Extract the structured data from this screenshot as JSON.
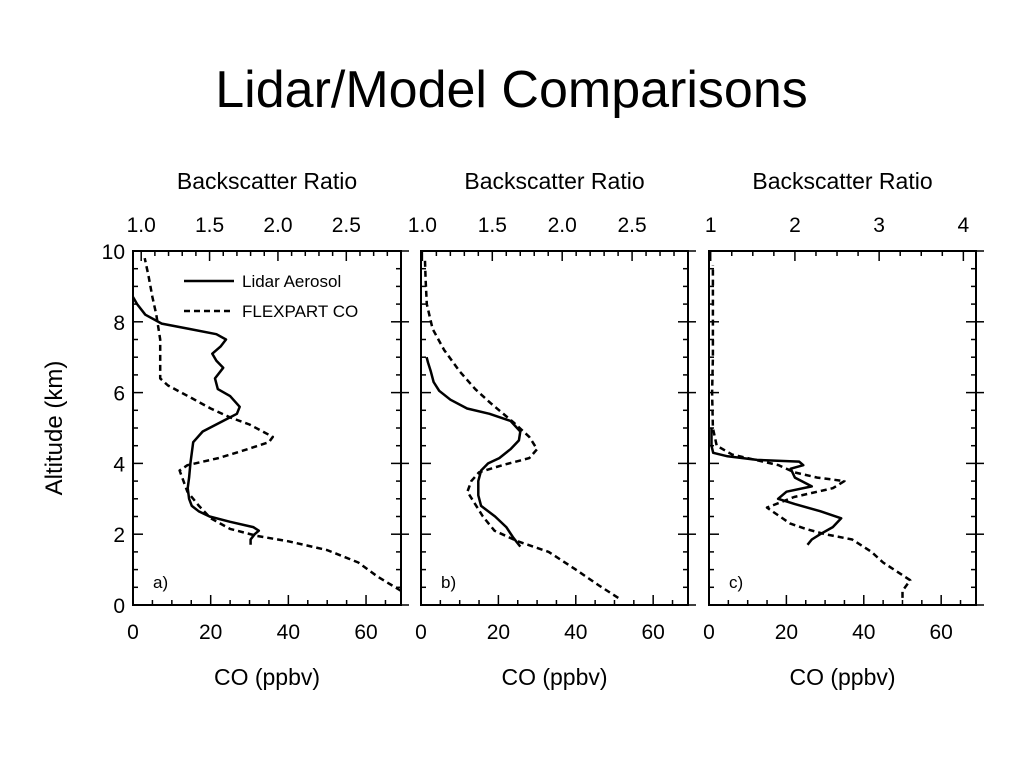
{
  "slide": {
    "title": "Lidar/Model Comparisons"
  },
  "figure": {
    "ylabel": "Altitude (km)",
    "legend": {
      "items": [
        {
          "label": "Lidar Aerosol",
          "style": "solid"
        },
        {
          "label": "FLEXPART CO",
          "style": "dashed"
        }
      ],
      "placement": "top-right of panel a"
    }
  },
  "chart_data": [
    {
      "type": "line",
      "panel_label": "a)",
      "xlabel_bottom": "CO (ppbv)",
      "xlabel_top": "Backscatter Ratio",
      "ylabel": "Altitude (km)",
      "bottom_ticks": [
        "0",
        "20",
        "40",
        "60"
      ],
      "top_ticks": [
        "1.0",
        "1.5",
        "2.0",
        "2.5"
      ],
      "y_ticks": [
        "0",
        "2",
        "4",
        "6",
        "8",
        "10"
      ],
      "co_range": [
        0,
        69
      ],
      "backscatter_range": [
        0.94,
        2.9
      ],
      "ylim": [
        0,
        10
      ],
      "series": [
        {
          "name": "Lidar Aerosol",
          "axis": "Backscatter Ratio",
          "style": "solid",
          "points": [
            [
              1.8,
              1.7
            ],
            [
              1.8,
              1.85
            ],
            [
              1.83,
              2.0
            ],
            [
              1.86,
              2.1
            ],
            [
              1.82,
              2.2
            ],
            [
              1.65,
              2.35
            ],
            [
              1.5,
              2.5
            ],
            [
              1.42,
              2.65
            ],
            [
              1.37,
              2.8
            ],
            [
              1.35,
              3.0
            ],
            [
              1.34,
              3.3
            ],
            [
              1.35,
              3.6
            ],
            [
              1.36,
              4.0
            ],
            [
              1.37,
              4.3
            ],
            [
              1.38,
              4.6
            ],
            [
              1.45,
              4.9
            ],
            [
              1.6,
              5.2
            ],
            [
              1.7,
              5.4
            ],
            [
              1.72,
              5.6
            ],
            [
              1.65,
              5.9
            ],
            [
              1.56,
              6.1
            ],
            [
              1.54,
              6.4
            ],
            [
              1.6,
              6.7
            ],
            [
              1.55,
              6.9
            ],
            [
              1.52,
              7.1
            ],
            [
              1.58,
              7.3
            ],
            [
              1.62,
              7.5
            ],
            [
              1.55,
              7.65
            ],
            [
              1.35,
              7.8
            ],
            [
              1.15,
              7.95
            ],
            [
              1.03,
              8.2
            ],
            [
              0.97,
              8.5
            ],
            [
              0.94,
              8.7
            ]
          ]
        },
        {
          "name": "FLEXPART CO",
          "axis": "CO (ppbv)",
          "style": "dashed",
          "points": [
            [
              69,
              0.4
            ],
            [
              63,
              0.8
            ],
            [
              58,
              1.2
            ],
            [
              50,
              1.55
            ],
            [
              40,
              1.8
            ],
            [
              32,
              1.95
            ],
            [
              25,
              2.15
            ],
            [
              20,
              2.45
            ],
            [
              17,
              2.8
            ],
            [
              14,
              3.2
            ],
            [
              13,
              3.5
            ],
            [
              12,
              3.8
            ],
            [
              14,
              3.95
            ],
            [
              22,
              4.15
            ],
            [
              28,
              4.35
            ],
            [
              35,
              4.6
            ],
            [
              36,
              4.75
            ],
            [
              30,
              5.1
            ],
            [
              25,
              5.3
            ],
            [
              20,
              5.55
            ],
            [
              15,
              5.85
            ],
            [
              9,
              6.2
            ],
            [
              7,
              6.4
            ],
            [
              7,
              6.9
            ],
            [
              7,
              7.5
            ],
            [
              6,
              8.2
            ],
            [
              5,
              8.7
            ],
            [
              4,
              9.3
            ],
            [
              3,
              9.8
            ]
          ]
        }
      ]
    },
    {
      "type": "line",
      "panel_label": "b)",
      "xlabel_bottom": "CO (ppbv)",
      "xlabel_top": "Backscatter Ratio",
      "bottom_ticks": [
        "0",
        "20",
        "40",
        "60"
      ],
      "top_ticks": [
        "1.0",
        "1.5",
        "2.0",
        "2.5"
      ],
      "co_range": [
        0,
        69
      ],
      "backscatter_range": [
        0.99,
        2.9
      ],
      "ylim": [
        0,
        10
      ],
      "series": [
        {
          "name": "Lidar Aerosol",
          "axis": "Backscatter Ratio",
          "style": "solid",
          "points": [
            [
              1.7,
              1.65
            ],
            [
              1.65,
              1.9
            ],
            [
              1.6,
              2.2
            ],
            [
              1.52,
              2.5
            ],
            [
              1.42,
              2.8
            ],
            [
              1.4,
              3.1
            ],
            [
              1.4,
              3.5
            ],
            [
              1.42,
              3.8
            ],
            [
              1.47,
              4.0
            ],
            [
              1.55,
              4.15
            ],
            [
              1.63,
              4.4
            ],
            [
              1.69,
              4.65
            ],
            [
              1.7,
              4.9
            ],
            [
              1.63,
              5.2
            ],
            [
              1.48,
              5.4
            ],
            [
              1.32,
              5.55
            ],
            [
              1.2,
              5.8
            ],
            [
              1.12,
              6.05
            ],
            [
              1.08,
              6.3
            ],
            [
              1.06,
              6.6
            ],
            [
              1.04,
              6.85
            ],
            [
              1.03,
              7.0
            ]
          ]
        },
        {
          "name": "FLEXPART CO",
          "axis": "CO (ppbv)",
          "style": "dashed",
          "points": [
            [
              51,
              0.2
            ],
            [
              46,
              0.55
            ],
            [
              40,
              1.0
            ],
            [
              33,
              1.5
            ],
            [
              25,
              1.8
            ],
            [
              19,
              2.1
            ],
            [
              16,
              2.5
            ],
            [
              12,
              3.2
            ],
            [
              13,
              3.5
            ],
            [
              15,
              3.75
            ],
            [
              21,
              3.95
            ],
            [
              28,
              4.15
            ],
            [
              30,
              4.4
            ],
            [
              28,
              4.75
            ],
            [
              24,
              5.15
            ],
            [
              18,
              5.7
            ],
            [
              14,
              6.1
            ],
            [
              10,
              6.6
            ],
            [
              6,
              7.2
            ],
            [
              3,
              7.8
            ],
            [
              1.5,
              8.5
            ],
            [
              1.2,
              9.2
            ],
            [
              1,
              9.8
            ]
          ]
        }
      ]
    },
    {
      "type": "line",
      "panel_label": "c)",
      "xlabel_bottom": "CO (ppbv)",
      "xlabel_top": "Backscatter Ratio",
      "bottom_ticks": [
        "0",
        "20",
        "40",
        "60"
      ],
      "top_ticks": [
        "1",
        "2",
        "3",
        "4"
      ],
      "co_range": [
        0,
        69
      ],
      "backscatter_range": [
        0.98,
        4.15
      ],
      "ylim": [
        0,
        10
      ],
      "series": [
        {
          "name": "Lidar Aerosol",
          "axis": "Backscatter Ratio",
          "style": "solid",
          "points": [
            [
              2.15,
              1.7
            ],
            [
              2.2,
              1.85
            ],
            [
              2.3,
              2.0
            ],
            [
              2.45,
              2.2
            ],
            [
              2.55,
              2.45
            ],
            [
              2.3,
              2.65
            ],
            [
              2.0,
              2.85
            ],
            [
              1.8,
              3.0
            ],
            [
              1.9,
              3.2
            ],
            [
              2.2,
              3.35
            ],
            [
              2.0,
              3.6
            ],
            [
              1.95,
              3.85
            ],
            [
              2.1,
              3.95
            ],
            [
              2.05,
              4.05
            ],
            [
              1.55,
              4.1
            ],
            [
              1.2,
              4.2
            ],
            [
              1.03,
              4.3
            ],
            [
              1.01,
              4.5
            ],
            [
              1.01,
              5.0
            ]
          ]
        },
        {
          "name": "FLEXPART CO",
          "axis": "CO (ppbv)",
          "style": "dashed",
          "points": [
            [
              50,
              0.2
            ],
            [
              50,
              0.4
            ],
            [
              52,
              0.7
            ],
            [
              45,
              1.2
            ],
            [
              42,
              1.5
            ],
            [
              37,
              1.85
            ],
            [
              30,
              2.0
            ],
            [
              25,
              2.15
            ],
            [
              21,
              2.3
            ],
            [
              17,
              2.6
            ],
            [
              15,
              2.75
            ],
            [
              22,
              3.05
            ],
            [
              32,
              3.3
            ],
            [
              35,
              3.5
            ],
            [
              28,
              3.6
            ],
            [
              22,
              3.75
            ],
            [
              18,
              3.95
            ],
            [
              12,
              4.1
            ],
            [
              6,
              4.25
            ],
            [
              2,
              4.5
            ],
            [
              1,
              5.0
            ],
            [
              0.8,
              6.0
            ],
            [
              1,
              7.0
            ],
            [
              1,
              8.0
            ],
            [
              1,
              9.0
            ],
            [
              1,
              9.6
            ]
          ]
        }
      ]
    }
  ]
}
